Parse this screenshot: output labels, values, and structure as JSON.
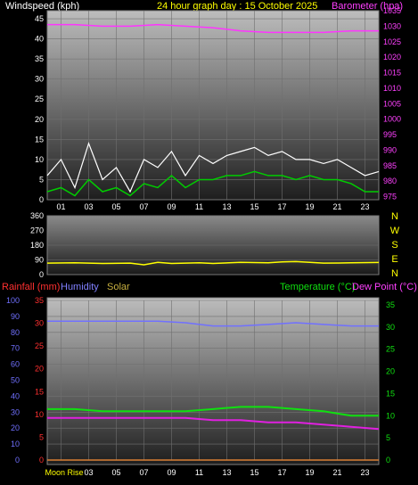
{
  "header": {
    "left_label": "Windspeed (kph)",
    "title": "24 hour graph day : 15 October 2025",
    "right_label": "Barometer (hpa)"
  },
  "legend2": {
    "rain": "Rainfall (mm)",
    "humidity": "Humidity",
    "solar": "Solar",
    "temperature": "Temperature (°C)",
    "dewpoint": "Dew Point (°C)"
  },
  "colors": {
    "wind": "#ffffff",
    "wind_avg": "#00cc00",
    "barometer": "#ff33ff",
    "direction": "#ffff00",
    "rain": "#ff2020",
    "humidity": "#7070ff",
    "solar": "#c8b040",
    "temperature": "#10e010",
    "dewpoint": "#e020e0",
    "grid": "#707070"
  },
  "chart_data": [
    {
      "type": "line",
      "name": "wind-baro",
      "x_ticks": [
        "01",
        "03",
        "05",
        "07",
        "09",
        "11",
        "13",
        "15",
        "17",
        "19",
        "21",
        "23"
      ],
      "y_left": {
        "label": "Windspeed (kph)",
        "min": 0,
        "max": 47,
        "ticks": [
          0,
          5,
          10,
          15,
          20,
          25,
          30,
          35,
          40,
          45
        ]
      },
      "y_right": {
        "label": "Barometer (hpa)",
        "min": 974,
        "max": 1035,
        "ticks": [
          975,
          980,
          985,
          990,
          995,
          1000,
          1005,
          1010,
          1015,
          1020,
          1025,
          1030,
          1035
        ]
      },
      "series": [
        {
          "key": "gust",
          "x": [
            0,
            1,
            2,
            3,
            4,
            5,
            6,
            7,
            8,
            9,
            10,
            11,
            12,
            13,
            14,
            15,
            16,
            17,
            18,
            19,
            20,
            21,
            22,
            23,
            24
          ],
          "values": [
            6,
            10,
            3,
            14,
            5,
            8,
            2,
            10,
            8,
            12,
            6,
            11,
            9,
            11,
            12,
            13,
            11,
            12,
            10,
            10,
            9,
            10,
            8,
            6,
            7
          ]
        },
        {
          "key": "average",
          "x": [
            0,
            1,
            2,
            3,
            4,
            5,
            6,
            7,
            8,
            9,
            10,
            11,
            12,
            13,
            14,
            15,
            16,
            17,
            18,
            19,
            20,
            21,
            22,
            23,
            24
          ],
          "values": [
            2,
            3,
            1,
            5,
            2,
            3,
            1,
            4,
            3,
            6,
            3,
            5,
            5,
            6,
            6,
            7,
            6,
            6,
            5,
            6,
            5,
            5,
            4,
            2,
            2
          ]
        },
        {
          "key": "barometer",
          "x": [
            0,
            2,
            4,
            6,
            8,
            10,
            12,
            14,
            16,
            18,
            20,
            22,
            24
          ],
          "values": [
            1030.5,
            1030.5,
            1030,
            1030,
            1030.5,
            1030,
            1029.5,
            1028.5,
            1028,
            1028,
            1028,
            1028.5,
            1028.5
          ]
        }
      ]
    },
    {
      "type": "line",
      "name": "wind-direction",
      "x_ticks": [],
      "y_left": {
        "min": 0,
        "max": 360,
        "ticks": [
          0,
          90,
          180,
          270,
          360
        ]
      },
      "y_right_labels": [
        "N",
        "W",
        "S",
        "E",
        "N"
      ],
      "series": [
        {
          "key": "direction",
          "x": [
            0,
            2,
            4,
            6,
            7,
            8,
            9,
            10,
            11,
            12,
            14,
            16,
            17,
            18,
            20,
            22,
            24
          ],
          "values": [
            70,
            72,
            68,
            70,
            60,
            75,
            68,
            70,
            72,
            68,
            75,
            72,
            78,
            80,
            70,
            72,
            74
          ]
        }
      ]
    },
    {
      "type": "line",
      "name": "temp-hum",
      "x_ticks": [
        "01",
        "03",
        "05",
        "07",
        "09",
        "11",
        "13",
        "15",
        "17",
        "19",
        "21",
        "23"
      ],
      "bottom_label": "Moon Rise",
      "y_left": {
        "min": 0,
        "max": 100,
        "ticks": [
          0,
          10,
          20,
          30,
          40,
          50,
          60,
          70,
          80,
          90,
          100
        ]
      },
      "y_rain": {
        "min": 0,
        "max": 35,
        "ticks": [
          0,
          5,
          10,
          15,
          20,
          25,
          30,
          35
        ]
      },
      "y_right": {
        "min": 0,
        "max": 36,
        "ticks": [
          0,
          5,
          10,
          15,
          20,
          25,
          30,
          35
        ]
      },
      "series": [
        {
          "key": "humidity",
          "x": [
            0,
            2,
            4,
            6,
            8,
            10,
            12,
            14,
            16,
            18,
            20,
            22,
            24
          ],
          "values": [
            87,
            87,
            87,
            87,
            87,
            86,
            84,
            84,
            85,
            86,
            85,
            84,
            84
          ]
        },
        {
          "key": "temperature",
          "x": [
            0,
            2,
            4,
            6,
            8,
            10,
            12,
            14,
            16,
            18,
            20,
            22,
            24
          ],
          "values": [
            11.5,
            11.5,
            11,
            11,
            11,
            11,
            11.5,
            12,
            12,
            11.5,
            11,
            10,
            10
          ]
        },
        {
          "key": "dewpoint",
          "x": [
            0,
            2,
            4,
            6,
            8,
            10,
            12,
            14,
            16,
            18,
            20,
            22,
            24
          ],
          "values": [
            9.5,
            9.5,
            9.5,
            9.5,
            9.5,
            9.5,
            9,
            9,
            8.5,
            8.5,
            8,
            7.5,
            7
          ]
        },
        {
          "key": "rain",
          "x": [
            0,
            24
          ],
          "values": [
            0,
            0
          ]
        },
        {
          "key": "solar",
          "x": [
            0,
            24
          ],
          "values": [
            0,
            0
          ]
        }
      ]
    }
  ]
}
